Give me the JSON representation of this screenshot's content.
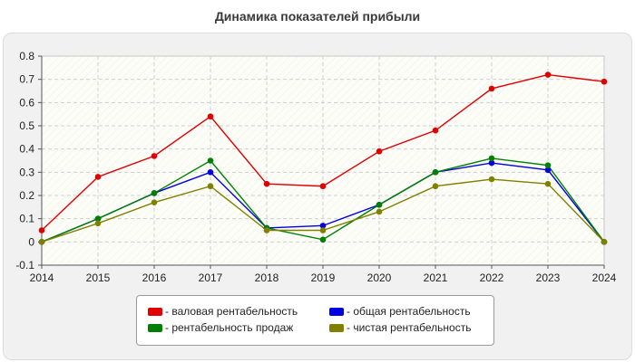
{
  "title": "Динамика показателей прибыли",
  "chart_data": {
    "type": "line",
    "x": [
      2014,
      2015,
      2016,
      2017,
      2018,
      2019,
      2020,
      2021,
      2022,
      2023,
      2024
    ],
    "ylim": [
      -0.1,
      0.8
    ],
    "yticks": [
      -0.1,
      0,
      0.1,
      0.2,
      0.3,
      0.4,
      0.5,
      0.6,
      0.7,
      0.8
    ],
    "grid": true,
    "legend_position": "bottom",
    "series": [
      {
        "name": "- валовая рентабельность",
        "color": "#e00000",
        "values": [
          0.05,
          0.28,
          0.37,
          0.54,
          0.25,
          0.24,
          0.39,
          0.48,
          0.66,
          0.72,
          0.69
        ]
      },
      {
        "name": "- общая рентабельность",
        "color": "#0000e0",
        "values": [
          0.0,
          0.1,
          0.21,
          0.3,
          0.06,
          0.07,
          0.16,
          0.3,
          0.34,
          0.31,
          0.0
        ]
      },
      {
        "name": "- рентабельность продаж",
        "color": "#008000",
        "values": [
          0.0,
          0.1,
          0.21,
          0.35,
          0.06,
          0.01,
          0.16,
          0.3,
          0.36,
          0.33,
          0.0
        ]
      },
      {
        "name": "- чистая рентабельность",
        "color": "#808000",
        "values": [
          0.0,
          0.08,
          0.17,
          0.24,
          0.05,
          0.05,
          0.13,
          0.24,
          0.27,
          0.25,
          0.0
        ]
      }
    ]
  }
}
